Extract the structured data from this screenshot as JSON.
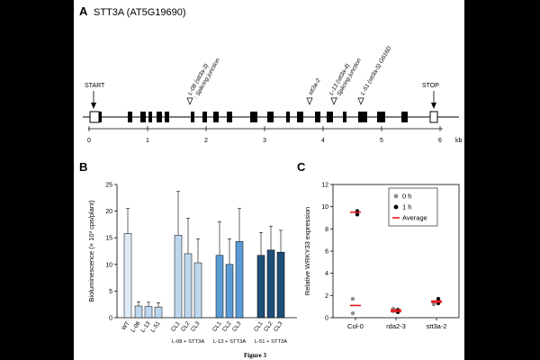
{
  "figure": {
    "caption": "Figure 3"
  },
  "panel_a": {
    "letter": "A",
    "title": "STT3A (AT5G19690)",
    "start_label": "START",
    "stop_label": "STOP",
    "kb_unit": "kb",
    "scale_ticks": [
      "0",
      "1",
      "2",
      "3",
      "4",
      "5",
      "6"
    ],
    "annotations": [
      {
        "line1": "L-08 (stt3a-3)",
        "line2": ": Splicing junction"
      },
      {
        "line1": "stt3a-2",
        "line2": ""
      },
      {
        "line1": "L-13 (stt3a-4)",
        "line2": ": Splicing junction"
      },
      {
        "line1": "L-51 (stt3a-5) G616D",
        "line2": ""
      }
    ]
  },
  "chart_data": [
    {
      "type": "bar",
      "panel": "B",
      "ylabel": "Bioluminescence (× 10³ cps/plant)",
      "ylim": [
        0,
        25
      ],
      "yticks": [
        "0",
        "5",
        "10",
        "15",
        "20",
        "25"
      ],
      "categories": [
        "WT",
        "L-08",
        "L-13",
        "L-51",
        "CL1",
        "CL2",
        "CL3",
        "CL1",
        "CL2",
        "CL3",
        "CL1",
        "CL2",
        "CL3"
      ],
      "values": [
        15.8,
        2.2,
        2.1,
        2.0,
        15.5,
        12.0,
        10.3,
        11.7,
        10.0,
        14.3,
        11.7,
        12.7,
        12.3
      ],
      "errors": [
        4.7,
        0.8,
        0.8,
        0.8,
        8.2,
        6.7,
        4.5,
        6.3,
        4.8,
        6.2,
        4.3,
        4.5,
        4.1
      ],
      "colors": [
        "#ddebf7",
        "#bdd7ee",
        "#bdd7ee",
        "#bdd7ee",
        "#bdd7ee",
        "#bdd7ee",
        "#bdd7ee",
        "#5b9bd5",
        "#5b9bd5",
        "#5b9bd5",
        "#1f4e79",
        "#1f4e79",
        "#1f4e79"
      ],
      "groups": [
        "L-08 + STT3A",
        "L-13 + STT3A",
        "L-51 + STT3A"
      ]
    },
    {
      "type": "scatter",
      "panel": "C",
      "ylabel": "Relative WRKY33 expression",
      "ylim": [
        0,
        12
      ],
      "yticks": [
        "0",
        "2",
        "4",
        "6",
        "8",
        "10",
        "12"
      ],
      "categories": [
        "Col-0",
        "rda2-3",
        "stt3a-2"
      ],
      "legend": [
        "0 h",
        "1 h",
        "Average"
      ],
      "points_0h": [
        [
          1.7,
          0.4
        ],
        [
          0.8,
          0.6
        ],
        [
          1.4,
          1.2
        ]
      ],
      "points_1h": [
        [
          9.3,
          9.6
        ],
        [
          0.7,
          0.5
        ],
        [
          1.7,
          1.3
        ]
      ],
      "averages": [
        [
          1.1,
          9.5
        ],
        [
          0.7,
          0.55
        ],
        [
          1.4,
          1.5
        ]
      ],
      "colors": {
        "zero_h": "#8c8c8c",
        "one_h": "#000000",
        "average": "#e31a1c"
      }
    }
  ]
}
